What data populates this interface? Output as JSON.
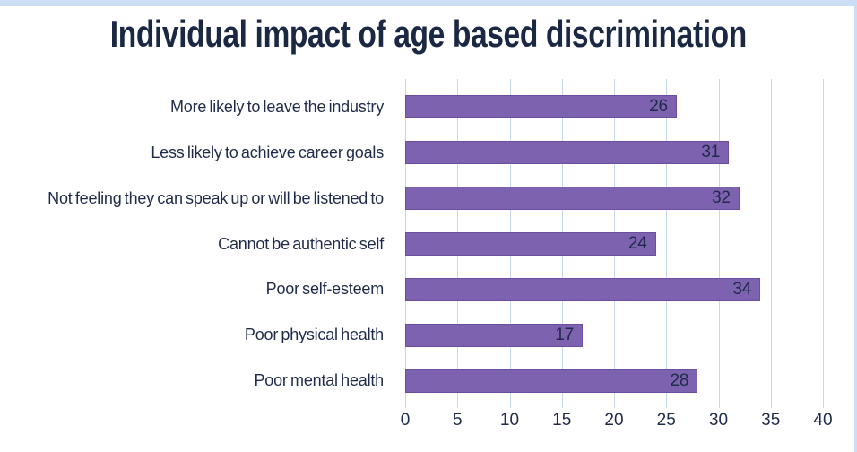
{
  "title": "Individual impact of age based discrimination",
  "colors": {
    "bar_fill": "#7c62af",
    "bar_border": "#6b4f9e",
    "text_navy": "#1f2b49",
    "title_navy": "#1b2844",
    "gridline": "#c3d8f0",
    "frame": "#cbdef5",
    "background": "#ffffff"
  },
  "chart_data": {
    "type": "bar",
    "orientation": "horizontal",
    "title": "Individual impact of age based discrimination",
    "categories": [
      "More likely to leave the industry",
      "Less likely to achieve career goals",
      "Not feeling they can speak up or will be listened to",
      "Cannot be authentic self",
      "Poor self-esteem",
      "Poor physical health",
      "Poor mental health"
    ],
    "values": [
      26,
      31,
      32,
      24,
      34,
      17,
      28
    ],
    "x_ticks": [
      0,
      5,
      10,
      15,
      20,
      25,
      30,
      35,
      40
    ],
    "xlim": [
      0,
      40
    ],
    "grid": true,
    "legend": false,
    "data_labels": "inside-end"
  }
}
